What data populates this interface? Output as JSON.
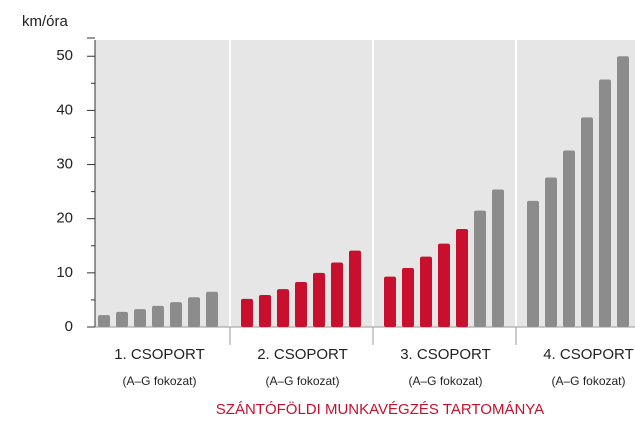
{
  "chart_data": {
    "type": "bar",
    "y_label": "km/óra",
    "x_title": "SZÁNTÓFÖLDI MUNKAVÉGZÉS TARTOMÁNYA",
    "ylim": [
      0,
      53
    ],
    "yticks": [
      0,
      10,
      20,
      30,
      40,
      50
    ],
    "minor_yticks": [
      5,
      15,
      25,
      35,
      45
    ],
    "groups": [
      {
        "label": "1. CSOPORT",
        "sublabel": "(A–G fokozat)",
        "values": [
          2.2,
          2.8,
          3.3,
          3.9,
          4.6,
          5.5,
          6.5
        ],
        "colors": [
          "#8c8c8c",
          "#8c8c8c",
          "#8c8c8c",
          "#8c8c8c",
          "#8c8c8c",
          "#8c8c8c",
          "#8c8c8c"
        ]
      },
      {
        "label": "2. CSOPORT",
        "sublabel": "(A–G fokozat)",
        "values": [
          5.2,
          5.9,
          7.0,
          8.3,
          10.0,
          11.9,
          14.1
        ],
        "colors": [
          "#c8102e",
          "#c8102e",
          "#c8102e",
          "#c8102e",
          "#c8102e",
          "#c8102e",
          "#c8102e"
        ]
      },
      {
        "label": "3. CSOPORT",
        "sublabel": "(A–G fokozat)",
        "values": [
          9.3,
          10.9,
          13.0,
          15.4,
          18.1,
          21.5,
          25.4
        ],
        "colors": [
          "#c8102e",
          "#c8102e",
          "#c8102e",
          "#c8102e",
          "#c8102e",
          "#8c8c8c",
          "#8c8c8c"
        ]
      },
      {
        "label": "4. CSOPORT",
        "sublabel": "(A–G fokozat)",
        "values": [
          23.3,
          27.6,
          32.6,
          38.7,
          45.7,
          50
        ],
        "colors": [
          "#8c8c8c",
          "#8c8c8c",
          "#8c8c8c",
          "#8c8c8c",
          "#8c8c8c",
          "#8c8c8c"
        ]
      }
    ]
  }
}
